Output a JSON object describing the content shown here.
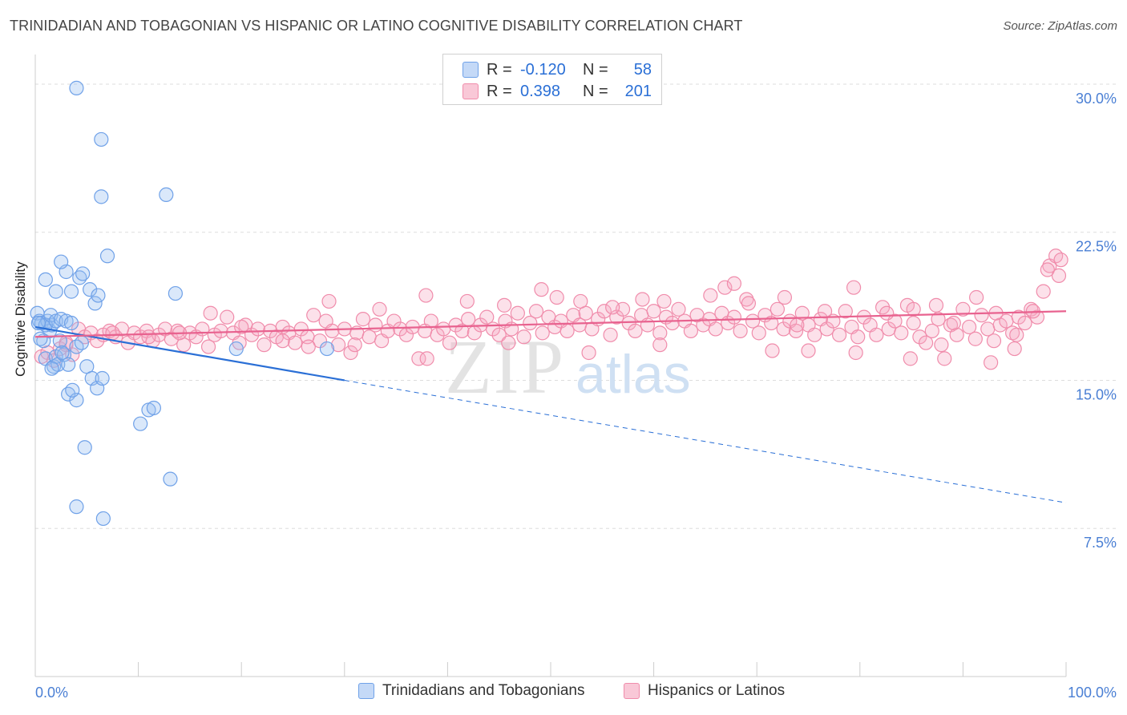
{
  "header": {
    "title": "TRINIDADIAN AND TOBAGONIAN VS HISPANIC OR LATINO COGNITIVE DISABILITY CORRELATION CHART",
    "source": "Source: ZipAtlas.com"
  },
  "watermark": {
    "zip": "ZIP",
    "atlas": "atlas"
  },
  "colors": {
    "blue": "#6fa1e8",
    "blue_line": "#2a6fd6",
    "pink": "#f08cab",
    "pink_line": "#e8628f",
    "axis_text": "#4a7fd4",
    "grid": "#dddddd"
  },
  "legend": {
    "rows": [
      {
        "r_label": "R =",
        "r_value": "-0.120",
        "n_label": "N =",
        "n_value": "58"
      },
      {
        "r_label": "R =",
        "r_value": "0.398",
        "n_label": "N =",
        "n_value": "201"
      }
    ]
  },
  "chart_data": {
    "type": "scatter",
    "xlabel": "",
    "ylabel": "Cognitive Disability",
    "xlim": [
      0,
      100
    ],
    "ylim": [
      0,
      31.5
    ],
    "x_tick_labels": [
      "0.0%",
      "100.0%"
    ],
    "y_ticks": [
      7.5,
      15.0,
      22.5,
      30.0
    ],
    "y_tick_labels": [
      "7.5%",
      "15.0%",
      "22.5%",
      "30.0%"
    ],
    "grid": true,
    "legend_position": "top-center",
    "series": [
      {
        "name": "Trinidadians and Tobagonians",
        "color": "#6fa1e8",
        "trend": {
          "x": [
            0,
            30
          ],
          "y": [
            17.7,
            15.0
          ],
          "dashed_to": [
            100,
            8.8
          ]
        },
        "points": [
          [
            0.2,
            18.4
          ],
          [
            0.4,
            18.0
          ],
          [
            0.6,
            17.9
          ],
          [
            0.8,
            17.0
          ],
          [
            1.0,
            16.1
          ],
          [
            1.2,
            18.0
          ],
          [
            1.4,
            17.5
          ],
          [
            1.6,
            17.8
          ],
          [
            1.8,
            15.7
          ],
          [
            2.0,
            16.2
          ],
          [
            2.2,
            15.8
          ],
          [
            2.4,
            17.0
          ],
          [
            0.5,
            17.1
          ],
          [
            1.0,
            17.8
          ],
          [
            1.5,
            18.3
          ],
          [
            2.0,
            18.0
          ],
          [
            2.5,
            18.1
          ],
          [
            3.0,
            18.0
          ],
          [
            3.5,
            17.9
          ],
          [
            2.8,
            16.3
          ],
          [
            3.2,
            15.8
          ],
          [
            4.0,
            16.7
          ],
          [
            4.5,
            16.9
          ],
          [
            5.0,
            15.7
          ],
          [
            5.5,
            15.1
          ],
          [
            6.0,
            14.6
          ],
          [
            6.5,
            15.1
          ],
          [
            1.0,
            20.1
          ],
          [
            2.0,
            19.5
          ],
          [
            3.0,
            20.5
          ],
          [
            3.5,
            19.5
          ],
          [
            2.5,
            21.0
          ],
          [
            4.3,
            20.2
          ],
          [
            5.3,
            19.6
          ],
          [
            4.6,
            20.4
          ],
          [
            5.8,
            18.9
          ],
          [
            6.1,
            19.3
          ],
          [
            7.0,
            21.3
          ],
          [
            3.2,
            14.3
          ],
          [
            4.0,
            14.0
          ],
          [
            3.6,
            14.5
          ],
          [
            4.8,
            11.6
          ],
          [
            4.0,
            29.8
          ],
          [
            6.4,
            27.2
          ],
          [
            6.4,
            24.3
          ],
          [
            12.7,
            24.4
          ],
          [
            13.6,
            19.4
          ],
          [
            10.2,
            12.8
          ],
          [
            11.0,
            13.5
          ],
          [
            11.5,
            13.6
          ],
          [
            4.0,
            8.6
          ],
          [
            6.6,
            8.0
          ],
          [
            13.1,
            10.0
          ],
          [
            19.5,
            16.6
          ],
          [
            28.3,
            16.6
          ],
          [
            2.6,
            16.4
          ],
          [
            1.6,
            15.6
          ],
          [
            0.3,
            17.9
          ]
        ]
      },
      {
        "name": "Hispanics or Latinos",
        "color": "#f08cab",
        "trend": {
          "x": [
            0,
            100
          ],
          "y": [
            17.2,
            18.5
          ]
        },
        "points": [
          [
            0.6,
            16.2
          ],
          [
            1.2,
            16.4
          ],
          [
            1.8,
            16.0
          ],
          [
            2.4,
            16.6
          ],
          [
            3.0,
            16.9
          ],
          [
            3.6,
            16.3
          ],
          [
            4.2,
            17.6
          ],
          [
            4.8,
            17.2
          ],
          [
            5.4,
            17.4
          ],
          [
            6.0,
            17.0
          ],
          [
            6.6,
            17.3
          ],
          [
            7.2,
            17.5
          ],
          [
            7.8,
            17.2
          ],
          [
            8.4,
            17.6
          ],
          [
            9.0,
            16.9
          ],
          [
            9.6,
            17.4
          ],
          [
            10.2,
            17.2
          ],
          [
            10.8,
            17.5
          ],
          [
            11.4,
            17.0
          ],
          [
            12.0,
            17.3
          ],
          [
            12.6,
            17.6
          ],
          [
            13.2,
            17.1
          ],
          [
            13.8,
            17.5
          ],
          [
            14.4,
            16.8
          ],
          [
            15.0,
            17.4
          ],
          [
            15.6,
            17.2
          ],
          [
            16.2,
            17.6
          ],
          [
            16.8,
            16.7
          ],
          [
            17.4,
            17.3
          ],
          [
            18.0,
            17.5
          ],
          [
            18.6,
            18.2
          ],
          [
            19.2,
            17.4
          ],
          [
            19.8,
            16.9
          ],
          [
            20.4,
            17.8
          ],
          [
            21.0,
            17.3
          ],
          [
            21.6,
            17.6
          ],
          [
            22.2,
            16.8
          ],
          [
            22.8,
            17.5
          ],
          [
            23.4,
            17.2
          ],
          [
            24.0,
            17.7
          ],
          [
            24.6,
            17.4
          ],
          [
            25.2,
            16.9
          ],
          [
            25.8,
            17.6
          ],
          [
            26.4,
            17.2
          ],
          [
            27.0,
            18.3
          ],
          [
            27.6,
            17.0
          ],
          [
            28.2,
            18.0
          ],
          [
            28.8,
            17.5
          ],
          [
            29.4,
            16.8
          ],
          [
            30.0,
            17.6
          ],
          [
            30.6,
            16.4
          ],
          [
            31.2,
            17.4
          ],
          [
            31.8,
            18.1
          ],
          [
            32.4,
            17.2
          ],
          [
            33.0,
            17.8
          ],
          [
            33.6,
            17.0
          ],
          [
            34.2,
            17.5
          ],
          [
            34.8,
            18.0
          ],
          [
            35.4,
            17.6
          ],
          [
            36.0,
            17.3
          ],
          [
            36.6,
            17.7
          ],
          [
            37.2,
            16.1
          ],
          [
            37.8,
            17.5
          ],
          [
            38.4,
            18.0
          ],
          [
            39.0,
            17.3
          ],
          [
            39.6,
            17.6
          ],
          [
            40.2,
            16.9
          ],
          [
            40.8,
            17.8
          ],
          [
            41.4,
            17.5
          ],
          [
            42.0,
            18.1
          ],
          [
            42.6,
            17.4
          ],
          [
            43.2,
            17.8
          ],
          [
            43.8,
            18.2
          ],
          [
            44.4,
            17.6
          ],
          [
            45.0,
            17.3
          ],
          [
            45.6,
            18.0
          ],
          [
            46.2,
            17.6
          ],
          [
            46.8,
            18.4
          ],
          [
            47.4,
            17.2
          ],
          [
            48.0,
            17.9
          ],
          [
            48.6,
            18.5
          ],
          [
            49.2,
            17.4
          ],
          [
            49.8,
            18.2
          ],
          [
            50.4,
            17.7
          ],
          [
            51.0,
            18.0
          ],
          [
            51.6,
            17.5
          ],
          [
            52.2,
            18.3
          ],
          [
            52.8,
            17.8
          ],
          [
            53.4,
            18.4
          ],
          [
            54.0,
            17.6
          ],
          [
            54.6,
            18.1
          ],
          [
            55.2,
            18.5
          ],
          [
            55.8,
            17.3
          ],
          [
            56.4,
            18.2
          ],
          [
            57.0,
            18.6
          ],
          [
            57.6,
            17.9
          ],
          [
            58.2,
            17.5
          ],
          [
            58.8,
            18.3
          ],
          [
            59.4,
            17.8
          ],
          [
            60.0,
            18.5
          ],
          [
            60.6,
            17.4
          ],
          [
            61.2,
            18.2
          ],
          [
            61.8,
            17.9
          ],
          [
            62.4,
            18.6
          ],
          [
            63.0,
            18.0
          ],
          [
            63.6,
            17.5
          ],
          [
            64.2,
            18.3
          ],
          [
            64.8,
            17.8
          ],
          [
            65.4,
            18.1
          ],
          [
            66.0,
            17.6
          ],
          [
            66.6,
            18.4
          ],
          [
            67.2,
            17.9
          ],
          [
            67.8,
            18.2
          ],
          [
            68.4,
            17.5
          ],
          [
            69.0,
            19.1
          ],
          [
            69.6,
            18.0
          ],
          [
            70.2,
            17.4
          ],
          [
            70.8,
            18.3
          ],
          [
            71.4,
            17.9
          ],
          [
            72.0,
            18.6
          ],
          [
            72.6,
            17.6
          ],
          [
            73.2,
            18.0
          ],
          [
            73.8,
            17.5
          ],
          [
            74.4,
            18.4
          ],
          [
            75.0,
            17.8
          ],
          [
            75.6,
            17.3
          ],
          [
            76.2,
            18.1
          ],
          [
            76.8,
            17.6
          ],
          [
            77.4,
            18.0
          ],
          [
            78.0,
            17.3
          ],
          [
            78.6,
            18.5
          ],
          [
            79.2,
            17.7
          ],
          [
            79.8,
            17.2
          ],
          [
            80.4,
            18.2
          ],
          [
            81.0,
            17.8
          ],
          [
            81.6,
            17.3
          ],
          [
            82.2,
            18.7
          ],
          [
            82.8,
            17.6
          ],
          [
            83.4,
            18.0
          ],
          [
            84.0,
            17.4
          ],
          [
            84.6,
            18.8
          ],
          [
            85.2,
            17.9
          ],
          [
            85.8,
            17.2
          ],
          [
            86.4,
            16.9
          ],
          [
            87.0,
            17.5
          ],
          [
            87.6,
            18.1
          ],
          [
            88.2,
            16.1
          ],
          [
            88.8,
            17.8
          ],
          [
            89.4,
            17.3
          ],
          [
            90.0,
            18.6
          ],
          [
            90.6,
            17.7
          ],
          [
            91.2,
            17.1
          ],
          [
            91.8,
            18.3
          ],
          [
            92.4,
            17.6
          ],
          [
            93.0,
            17.0
          ],
          [
            93.6,
            17.8
          ],
          [
            94.2,
            18.0
          ],
          [
            94.8,
            17.4
          ],
          [
            95.4,
            18.2
          ],
          [
            96.0,
            17.9
          ],
          [
            96.6,
            18.6
          ],
          [
            97.2,
            18.2
          ],
          [
            97.8,
            19.5
          ],
          [
            98.4,
            20.8
          ],
          [
            99.0,
            21.3
          ],
          [
            99.5,
            21.1
          ],
          [
            98.2,
            20.6
          ],
          [
            99.3,
            20.3
          ],
          [
            28.5,
            19.0
          ],
          [
            33.4,
            18.6
          ],
          [
            37.9,
            19.3
          ],
          [
            41.9,
            19.0
          ],
          [
            45.5,
            18.8
          ],
          [
            49.1,
            19.6
          ],
          [
            50.6,
            19.2
          ],
          [
            52.9,
            19.0
          ],
          [
            56.0,
            18.7
          ],
          [
            58.9,
            19.1
          ],
          [
            61.0,
            19.0
          ],
          [
            65.5,
            19.3
          ],
          [
            66.9,
            19.7
          ],
          [
            67.8,
            19.9
          ],
          [
            69.2,
            18.9
          ],
          [
            72.7,
            19.2
          ],
          [
            73.9,
            17.8
          ],
          [
            75.0,
            16.5
          ],
          [
            76.6,
            18.5
          ],
          [
            79.4,
            19.7
          ],
          [
            82.6,
            18.4
          ],
          [
            85.2,
            18.6
          ],
          [
            87.4,
            18.8
          ],
          [
            89.1,
            17.9
          ],
          [
            91.3,
            19.2
          ],
          [
            93.2,
            18.4
          ],
          [
            95.2,
            17.3
          ],
          [
            96.8,
            18.5
          ],
          [
            3.0,
            16.8
          ],
          [
            7.5,
            17.4
          ],
          [
            11.0,
            17.2
          ],
          [
            14.0,
            17.4
          ],
          [
            17.0,
            18.4
          ],
          [
            20.0,
            17.7
          ],
          [
            24.0,
            17.0
          ],
          [
            26.5,
            16.7
          ],
          [
            31.0,
            16.8
          ],
          [
            38.0,
            16.1
          ],
          [
            45.9,
            16.9
          ],
          [
            53.7,
            16.4
          ],
          [
            60.6,
            16.8
          ],
          [
            71.5,
            16.5
          ],
          [
            79.6,
            16.4
          ],
          [
            84.9,
            16.1
          ],
          [
            87.9,
            16.8
          ],
          [
            92.7,
            15.9
          ],
          [
            95.0,
            16.6
          ]
        ]
      }
    ]
  },
  "bottom_legend": {
    "items": [
      {
        "label": "Trinidadians and Tobagonians"
      },
      {
        "label": "Hispanics or Latinos"
      }
    ]
  }
}
